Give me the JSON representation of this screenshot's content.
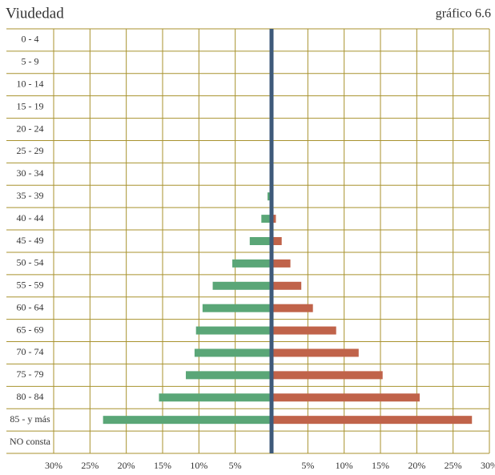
{
  "chart_data": {
    "type": "pyramid",
    "title": "Viudedad",
    "subtitle": "gráfico 6.6",
    "categories": [
      "0 - 4",
      "5 - 9",
      "10 - 14",
      "15 - 19",
      "20 - 24",
      "25 - 29",
      "30 - 34",
      "35 - 39",
      "40 - 44",
      "45 - 49",
      "50 - 54",
      "55 - 59",
      "60 - 64",
      "65 - 69",
      "70 - 74",
      "75 - 79",
      "80 - 84",
      "85 - y más",
      "NO consta"
    ],
    "series": [
      {
        "color": "#5aa677",
        "values": [
          0,
          0,
          0,
          0,
          0,
          0,
          0,
          -0.55,
          -1.4,
          -3.0,
          -5.4,
          -8.1,
          -9.5,
          -10.4,
          -10.6,
          -11.8,
          -15.5,
          -23.2,
          0
        ]
      },
      {
        "color": "#c0634a",
        "values": [
          0,
          0,
          0,
          0,
          0,
          0,
          0,
          0.2,
          0.6,
          1.4,
          2.6,
          4.1,
          5.7,
          8.9,
          12.0,
          15.3,
          20.4,
          27.6,
          0
        ]
      }
    ],
    "xlim": [
      -30,
      30
    ],
    "xticks": [
      {
        "value": -30,
        "label": "30%"
      },
      {
        "value": -25,
        "label": "25%"
      },
      {
        "value": -20,
        "label": "20%"
      },
      {
        "value": -15,
        "label": "15%"
      },
      {
        "value": -10,
        "label": "10%"
      },
      {
        "value": -5,
        "label": "5%"
      },
      {
        "value": 5,
        "label": "5%"
      },
      {
        "value": 10,
        "label": "10%"
      },
      {
        "value": 15,
        "label": "15%"
      },
      {
        "value": 20,
        "label": "20%"
      },
      {
        "value": 25,
        "label": "25%"
      },
      {
        "value": 30,
        "label": "30%"
      }
    ],
    "grid": true
  }
}
